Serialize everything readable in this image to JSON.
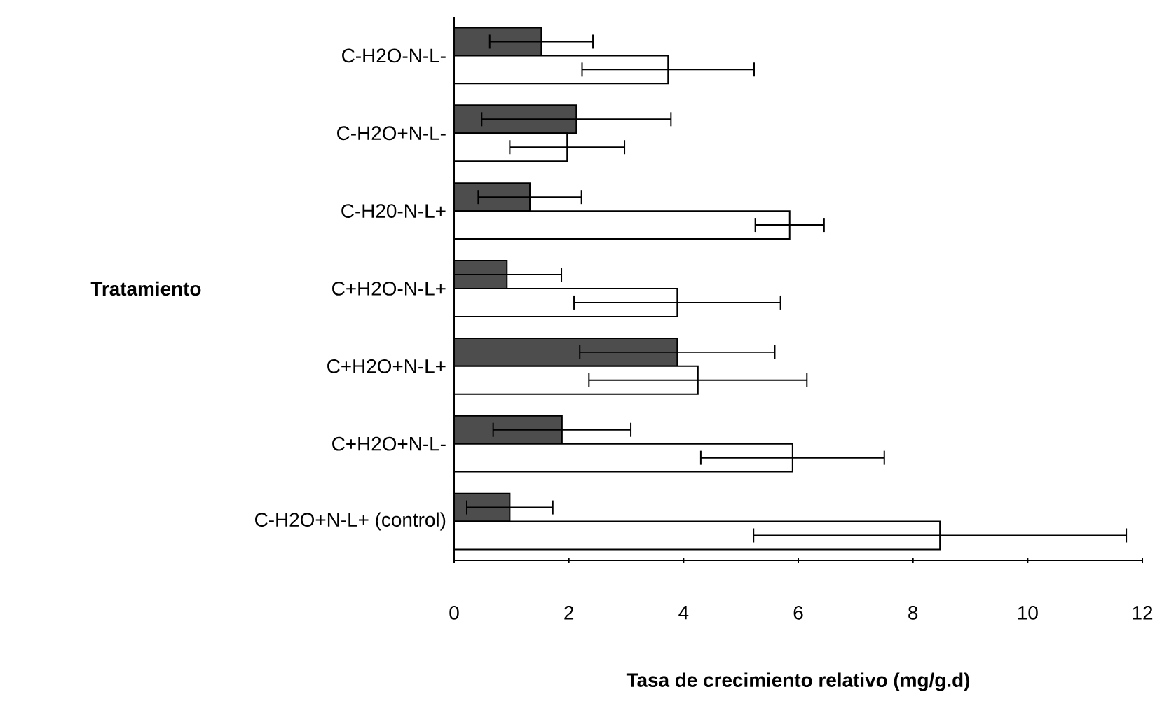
{
  "chart_data": {
    "type": "bar",
    "orientation": "horizontal",
    "xlabel": "Tasa de crecimiento relativo (mg/g.d)",
    "ylabel": "Tratamiento",
    "categories": [
      "C-H2O-N-L-",
      "C-H2O+N-L-",
      "C-H20-N-L+",
      "C+H2O-N-L+",
      "C+H2O+N-L+",
      "C+H2O+N-L-",
      "C-H2O+N-L+ (control)"
    ],
    "series": [
      {
        "color": "#4d4d4d",
        "values": [
          1.52,
          2.13,
          1.32,
          0.92,
          3.89,
          1.88,
          0.97
        ],
        "errors": [
          0.9,
          1.65,
          0.9,
          0.95,
          1.7,
          1.2,
          0.75
        ]
      },
      {
        "color": "#ffffff",
        "values": [
          3.73,
          1.97,
          5.85,
          3.89,
          4.25,
          5.9,
          8.47
        ],
        "errors": [
          1.5,
          1.0,
          0.6,
          1.8,
          1.9,
          1.6,
          3.25
        ]
      }
    ],
    "xlim": [
      0,
      12
    ],
    "xticks": [
      0,
      2,
      4,
      6,
      8,
      10,
      12
    ],
    "grid": false
  }
}
